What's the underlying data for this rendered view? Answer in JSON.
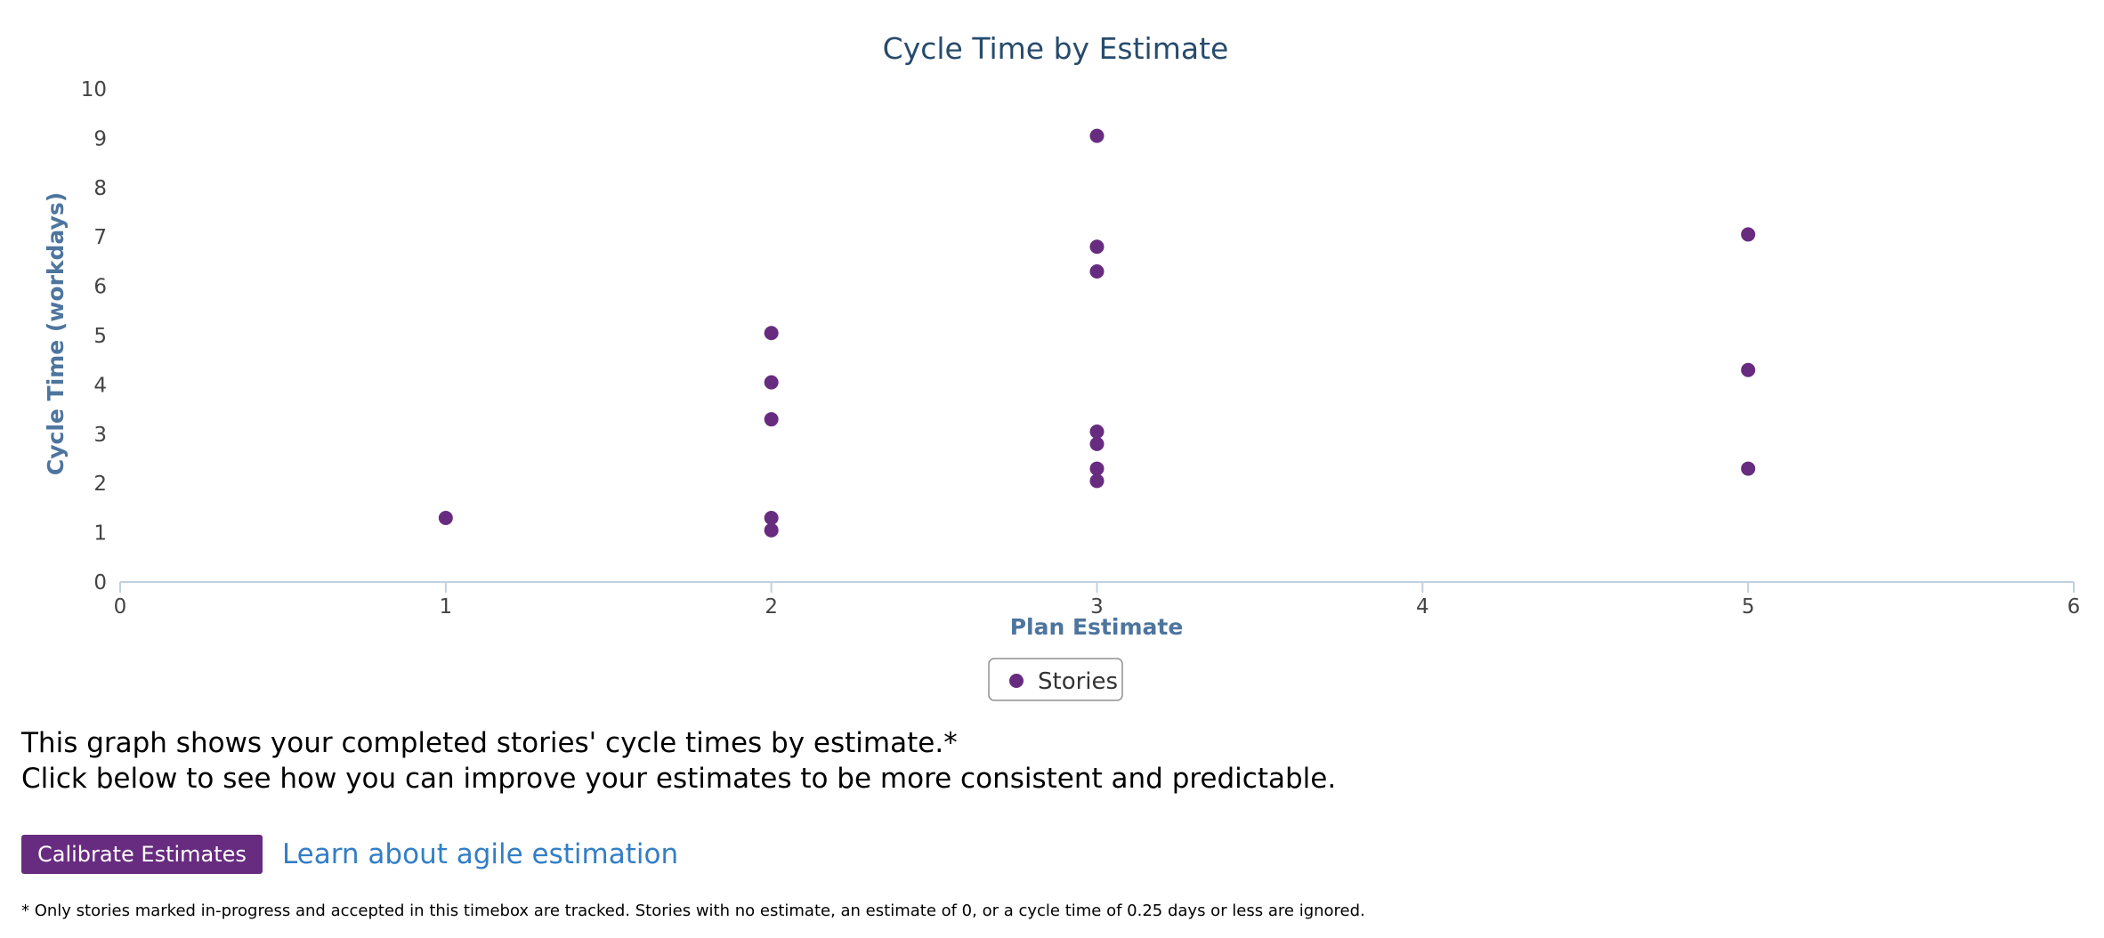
{
  "chart_data": {
    "type": "scatter",
    "title": "Cycle Time by Estimate",
    "xlabel": "Plan Estimate",
    "ylabel": "Cycle Time (workdays)",
    "xlim": [
      0,
      6
    ],
    "ylim": [
      0,
      10
    ],
    "x_ticks": [
      "0",
      "1",
      "2",
      "3",
      "4",
      "5",
      "6"
    ],
    "y_ticks": [
      "0",
      "1",
      "2",
      "3",
      "4",
      "5",
      "6",
      "7",
      "8",
      "9",
      "10"
    ],
    "grid": false,
    "legend_position": "bottom-center",
    "series": [
      {
        "name": "Stories",
        "color": "#672c7f",
        "points": [
          {
            "x": 1,
            "y": 1.3
          },
          {
            "x": 2,
            "y": 1.05
          },
          {
            "x": 2,
            "y": 1.3
          },
          {
            "x": 2,
            "y": 3.3
          },
          {
            "x": 2,
            "y": 4.05
          },
          {
            "x": 2,
            "y": 5.05
          },
          {
            "x": 3,
            "y": 2.05
          },
          {
            "x": 3,
            "y": 2.3
          },
          {
            "x": 3,
            "y": 2.8
          },
          {
            "x": 3,
            "y": 3.05
          },
          {
            "x": 3,
            "y": 6.3
          },
          {
            "x": 3,
            "y": 6.8
          },
          {
            "x": 3,
            "y": 9.05
          },
          {
            "x": 5,
            "y": 2.3
          },
          {
            "x": 5,
            "y": 4.3
          },
          {
            "x": 5,
            "y": 7.05
          }
        ]
      }
    ]
  },
  "description": {
    "line1": "This graph shows your completed stories' cycle times by estimate.*",
    "line2": "Click below to see how you can improve your estimates to be more consistent and predictable."
  },
  "actions": {
    "calibrate_label": "Calibrate Estimates",
    "learn_label": "Learn about agile estimation"
  },
  "footnote": "* Only stories marked in-progress and accepted in this timebox are tracked. Stories with no estimate, an estimate of 0, or a cycle time of 0.25 days or less are ignored.",
  "colors": {
    "accent": "#672c7f",
    "title": "#274b6d",
    "axis_title": "#4d759e",
    "link": "#337ec6"
  }
}
